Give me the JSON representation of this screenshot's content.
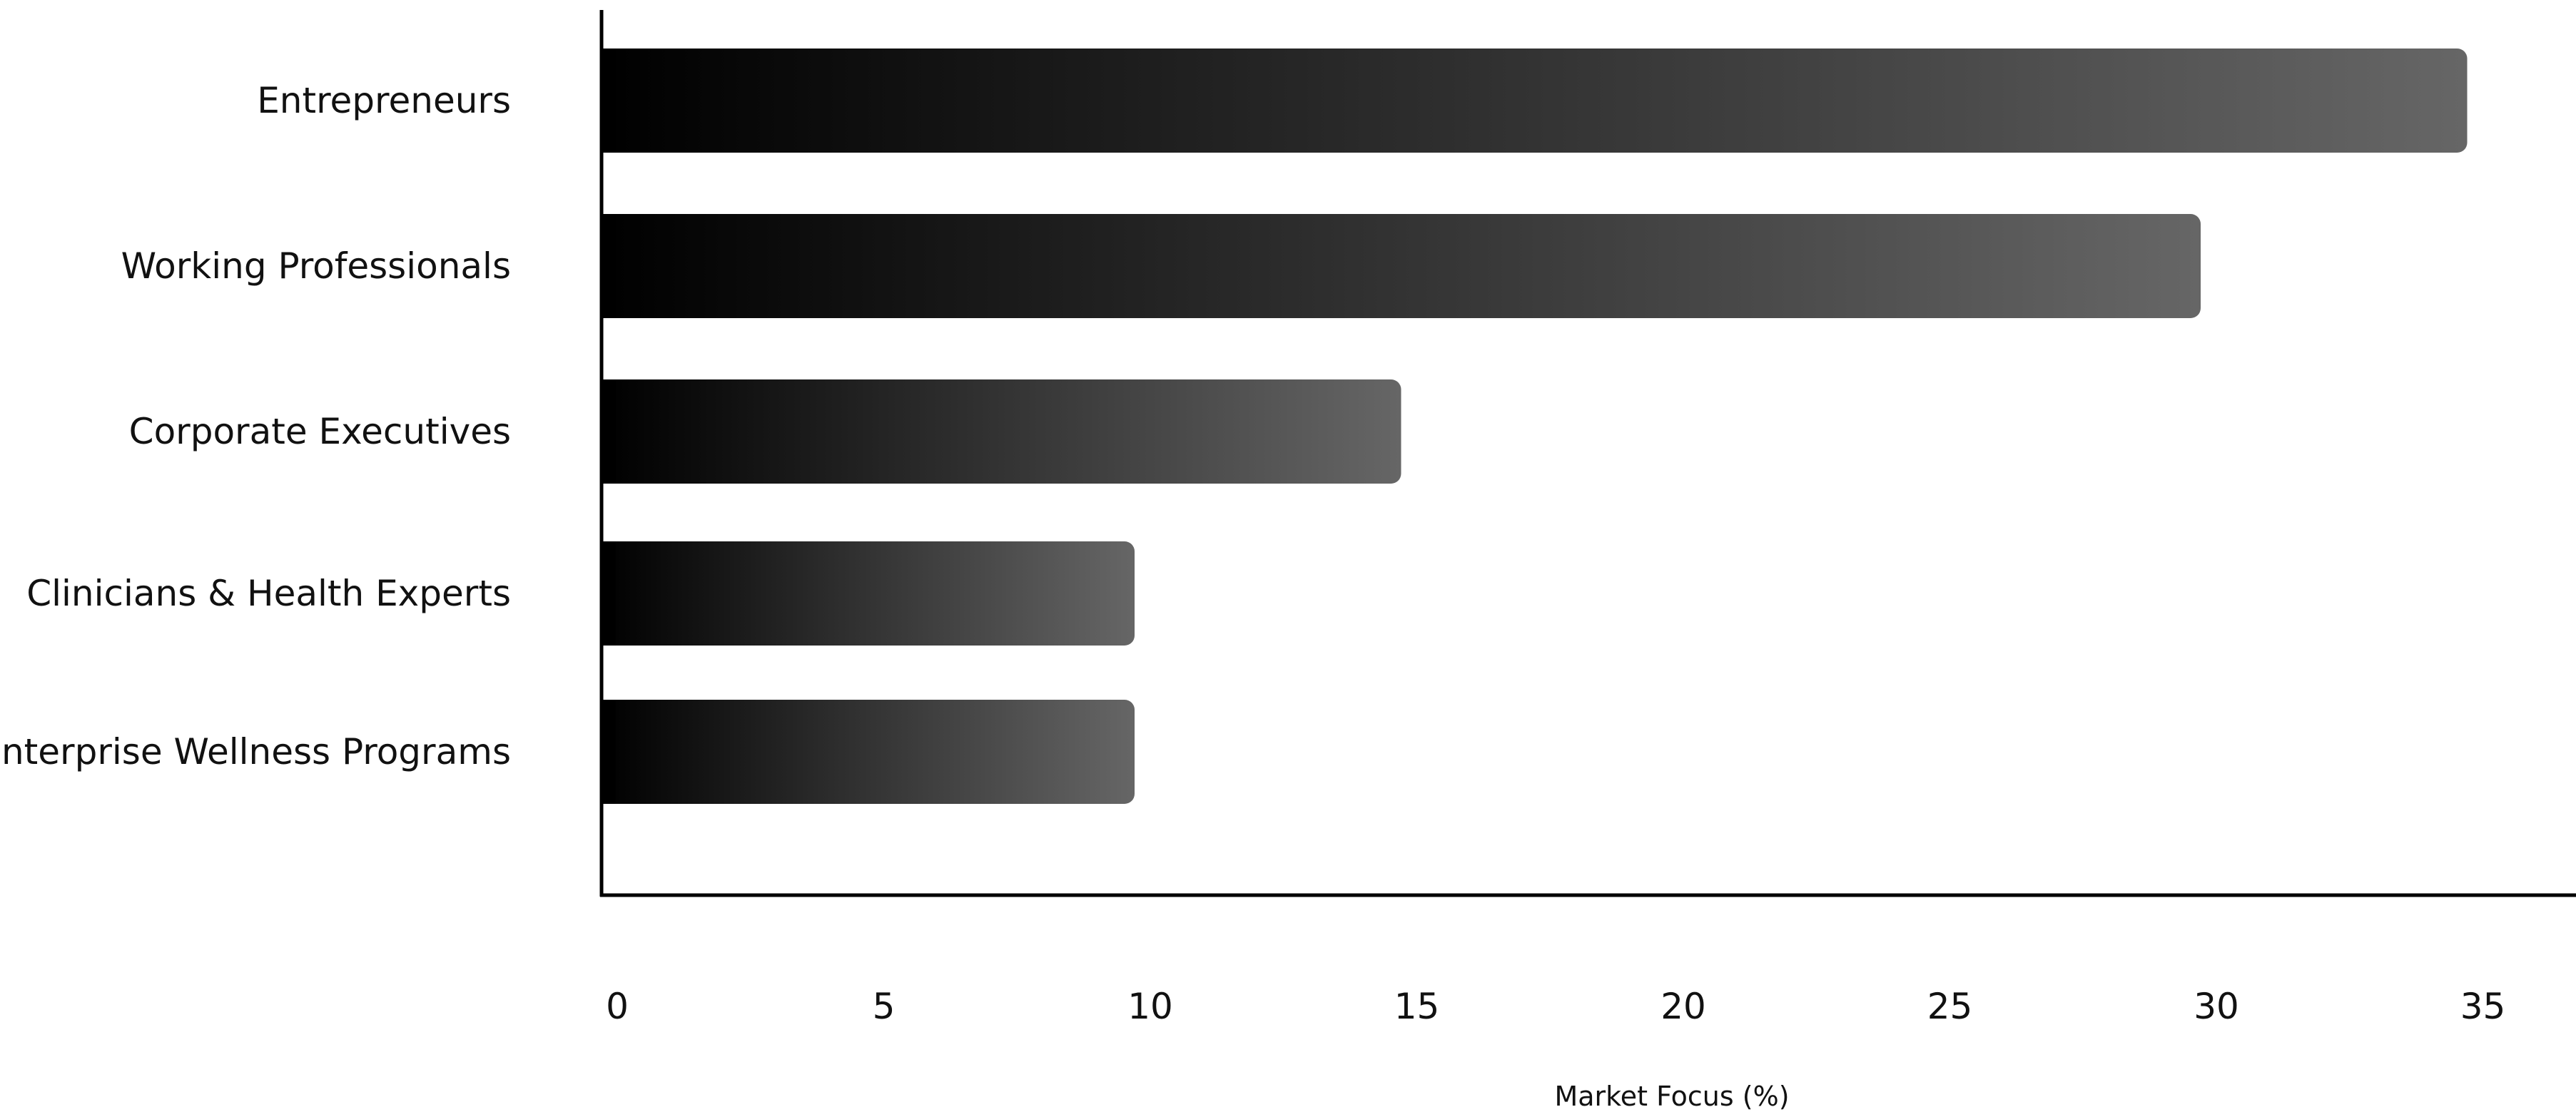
{
  "chart_data": {
    "type": "bar",
    "orientation": "horizontal",
    "categories": [
      "Entrepreneurs",
      "Working Professionals",
      "Corporate Executives",
      "Clinicians & Health Experts",
      "Enterprise Wellness Programs"
    ],
    "values": [
      35,
      30,
      15,
      10,
      10
    ],
    "xlabel": "Market Focus (%)",
    "ylabel": "",
    "xlim": [
      0,
      37.3
    ],
    "xticks": [
      "0",
      "5",
      "10",
      "15",
      "20",
      "25",
      "30",
      "35"
    ],
    "grid": false,
    "legend": "none",
    "bar_gradient": [
      "#000000",
      "#666666"
    ]
  }
}
